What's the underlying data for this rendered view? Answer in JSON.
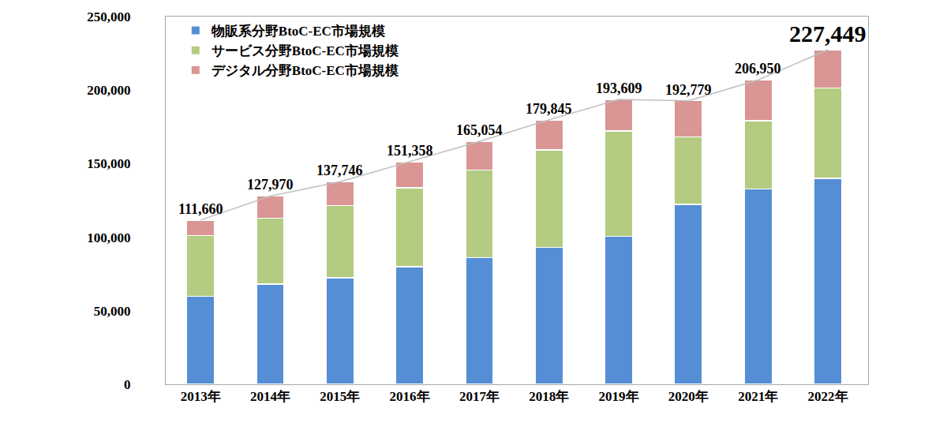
{
  "chart_data": {
    "type": "bar",
    "stacked": true,
    "categories": [
      "2013年",
      "2014年",
      "2015年",
      "2016年",
      "2017年",
      "2018年",
      "2019年",
      "2020年",
      "2021年",
      "2022年"
    ],
    "series": [
      {
        "name": "物販系分野BtoC-EC市場規模",
        "color": "#558ed5",
        "values": [
          59931,
          68043,
          72398,
          80043,
          86008,
          92992,
          100515,
          122333,
          132865,
          139997
        ]
      },
      {
        "name": "サービス分野BtoC-EC市場規模",
        "color": "#b3cc82",
        "values": [
          41104,
          44816,
          49014,
          53532,
          59568,
          66471,
          71672,
          45832,
          46424,
          61477
        ]
      },
      {
        "name": "デジタル分野BtoC-EC市場規模",
        "color": "#d99694",
        "values": [
          10625,
          15111,
          16334,
          17782,
          19478,
          20382,
          21422,
          24614,
          27661,
          25974
        ]
      }
    ],
    "totals": [
      111660,
      127970,
      137746,
      151358,
      165054,
      179845,
      193609,
      192779,
      206950,
      227449
    ],
    "total_labels": [
      "111,660",
      "127,970",
      "137,746",
      "151,358",
      "165,054",
      "179,845",
      "193,609",
      "192,779",
      "206,950",
      "227,449"
    ],
    "ylim": [
      0,
      250000
    ],
    "yticks": [
      0,
      {
        "value": 50000,
        "label": "50,000"
      },
      {
        "value": 100000,
        "label": "100,000"
      },
      {
        "value": 150000,
        "label": "150,000"
      },
      {
        "value": 200000,
        "label": "200,000"
      },
      {
        "value": 250000,
        "label": "250,000"
      }
    ],
    "grid": false,
    "legend": "top-left",
    "data_labels": true
  }
}
